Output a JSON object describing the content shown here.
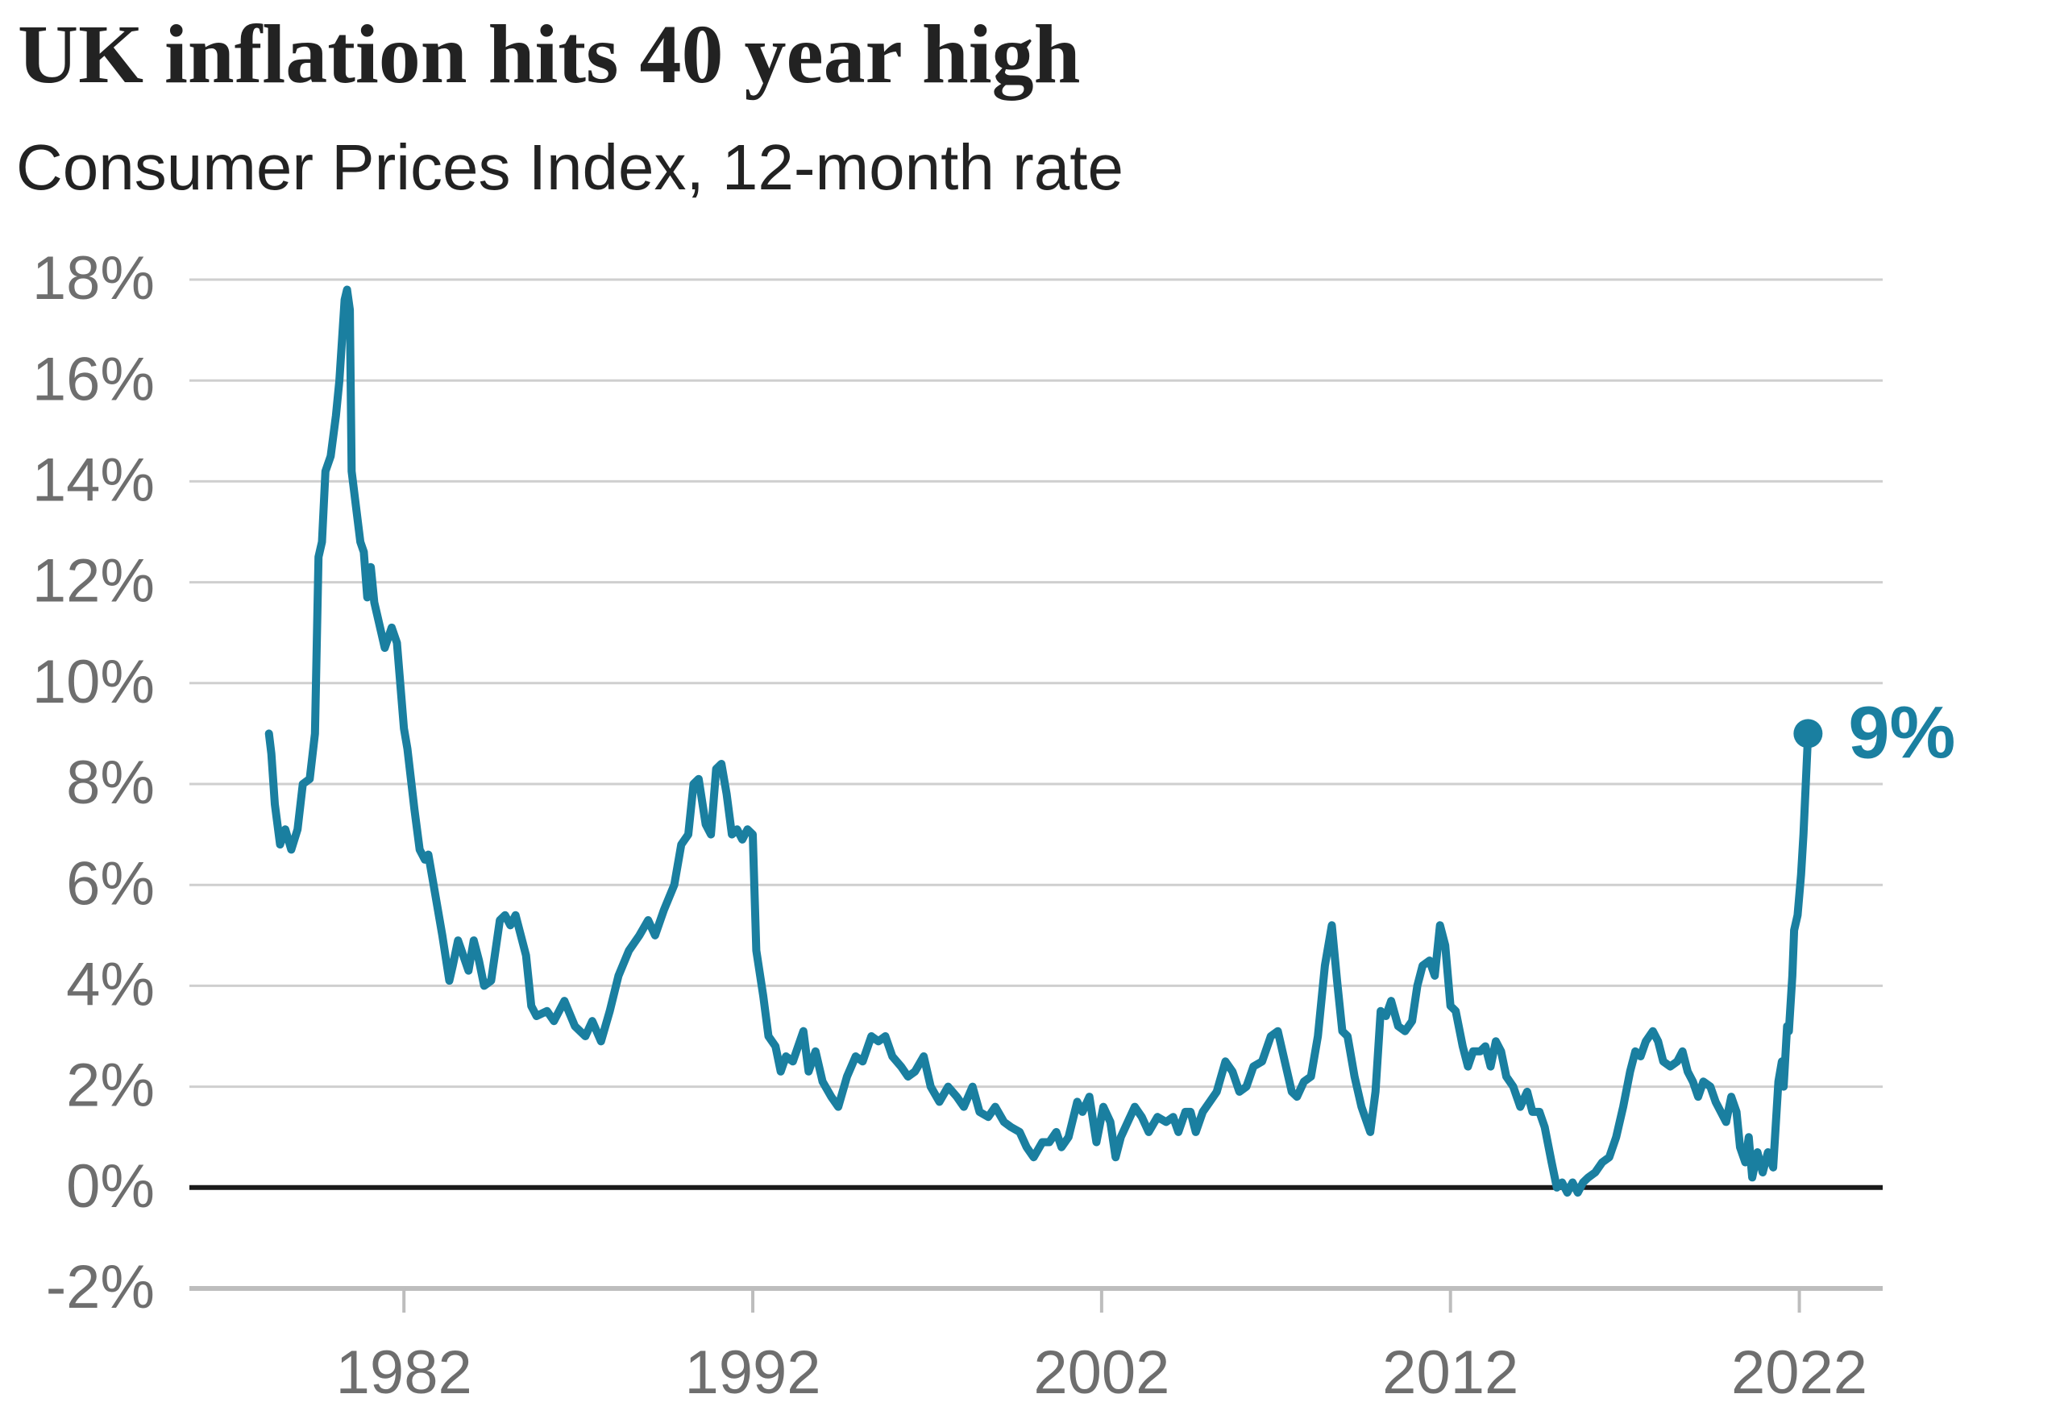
{
  "chart_data": {
    "type": "line",
    "title": "UK inflation hits 40 year high",
    "subtitle": "Consumer Prices Index, 12-month rate",
    "color": "#1a7fa0",
    "x": [
      1978.13,
      1978.2,
      1978.3,
      1978.45,
      1978.6,
      1978.77,
      1978.95,
      1979.1,
      1979.3,
      1979.45,
      1979.55,
      1979.65,
      1979.75,
      1979.9,
      1980.05,
      1980.15,
      1980.3,
      1980.37,
      1980.45,
      1980.5,
      1980.75,
      1980.85,
      1980.95,
      1981.05,
      1981.15,
      1981.35,
      1981.45,
      1981.65,
      1981.8,
      1982.0,
      1982.1,
      1982.3,
      1982.45,
      1982.6,
      1982.7,
      1982.85,
      1983.1,
      1983.3,
      1983.4,
      1983.55,
      1983.7,
      1983.85,
      1984.0,
      1984.15,
      1984.3,
      1984.5,
      1984.75,
      1984.9,
      1985.05,
      1985.2,
      1985.35,
      1985.5,
      1985.65,
      1985.8,
      1986.1,
      1986.3,
      1986.6,
      1986.9,
      1987.2,
      1987.4,
      1987.65,
      1987.9,
      1988.15,
      1988.45,
      1988.75,
      1989.0,
      1989.2,
      1989.45,
      1989.75,
      1989.95,
      1990.15,
      1990.3,
      1990.45,
      1990.65,
      1990.8,
      1990.95,
      1991.1,
      1991.25,
      1991.4,
      1991.55,
      1991.7,
      1991.85,
      1992.0,
      1992.1,
      1992.3,
      1992.45,
      1992.65,
      1992.8,
      1992.95,
      1993.15,
      1993.45,
      1993.6,
      1993.8,
      1994.0,
      1994.25,
      1994.45,
      1994.7,
      1994.95,
      1995.15,
      1995.4,
      1995.6,
      1995.8,
      1996.0,
      1996.25,
      1996.45,
      1996.65,
      1996.9,
      1997.1,
      1997.35,
      1997.6,
      1997.85,
      1998.05,
      1998.3,
      1998.5,
      1998.75,
      1998.95,
      1999.2,
      1999.4,
      1999.65,
      1999.85,
      2000.05,
      2000.3,
      2000.5,
      2000.7,
      2000.85,
      2001.05,
      2001.3,
      2001.45,
      2001.65,
      2001.85,
      2002.05,
      2002.25,
      2002.4,
      2002.55,
      2002.75,
      2002.95,
      2003.15,
      2003.35,
      2003.6,
      2003.85,
      2004.05,
      2004.2,
      2004.4,
      2004.55,
      2004.7,
      2004.9,
      2005.1,
      2005.3,
      2005.55,
      2005.75,
      2005.95,
      2006.15,
      2006.35,
      2006.6,
      2006.85,
      2007.05,
      2007.25,
      2007.45,
      2007.6,
      2007.8,
      2008.0,
      2008.2,
      2008.4,
      2008.6,
      2008.75,
      2008.9,
      2009.05,
      2009.25,
      2009.45,
      2009.7,
      2009.85,
      2010.0,
      2010.15,
      2010.3,
      2010.5,
      2010.7,
      2010.9,
      2011.05,
      2011.2,
      2011.4,
      2011.55,
      2011.7,
      2011.85,
      2012.0,
      2012.15,
      2012.35,
      2012.5,
      2012.65,
      2012.85,
      2013.0,
      2013.15,
      2013.3,
      2013.45,
      2013.6,
      2013.8,
      2014.0,
      2014.2,
      2014.35,
      2014.55,
      2014.7,
      2014.9,
      2015.05,
      2015.2,
      2015.35,
      2015.5,
      2015.65,
      2015.8,
      2015.95,
      2016.15,
      2016.35,
      2016.55,
      2016.75,
      2016.95,
      2017.15,
      2017.3,
      2017.45,
      2017.6,
      2017.8,
      2017.95,
      2018.1,
      2018.3,
      2018.5,
      2018.65,
      2018.8,
      2018.95,
      2019.1,
      2019.25,
      2019.45,
      2019.6,
      2019.75,
      2019.9,
      2020.05,
      2020.2,
      2020.3,
      2020.45,
      2020.55,
      2020.65,
      2020.8,
      2020.95,
      2021.1,
      2021.25,
      2021.4,
      2021.5,
      2021.55,
      2021.65,
      2021.7,
      2021.8,
      2021.85,
      2021.95,
      2022.05,
      2022.12,
      2022.25
    ],
    "values": [
      9.0,
      8.6,
      7.6,
      6.8,
      7.1,
      6.7,
      7.1,
      8.0,
      8.1,
      9.0,
      12.5,
      12.8,
      14.2,
      14.5,
      15.3,
      16.0,
      17.6,
      17.8,
      17.4,
      14.2,
      12.8,
      12.6,
      11.7,
      12.3,
      11.6,
      11.0,
      10.7,
      11.1,
      10.8,
      9.1,
      8.7,
      7.5,
      6.7,
      6.5,
      6.6,
      6.0,
      5.0,
      4.1,
      4.4,
      4.9,
      4.6,
      4.3,
      4.9,
      4.5,
      4.0,
      4.1,
      5.3,
      5.4,
      5.2,
      5.4,
      5.0,
      4.6,
      3.6,
      3.4,
      3.5,
      3.3,
      3.7,
      3.2,
      3.0,
      3.3,
      2.9,
      3.5,
      4.2,
      4.7,
      5.0,
      5.3,
      5.0,
      5.5,
      6.0,
      6.8,
      7.0,
      8.0,
      8.1,
      7.2,
      7.0,
      8.3,
      8.4,
      7.8,
      7.0,
      7.1,
      6.9,
      7.1,
      7.0,
      4.7,
      3.8,
      3.0,
      2.8,
      2.3,
      2.6,
      2.5,
      3.1,
      2.3,
      2.7,
      2.1,
      1.8,
      1.6,
      2.2,
      2.6,
      2.5,
      3.0,
      2.9,
      3.0,
      2.6,
      2.4,
      2.2,
      2.3,
      2.6,
      2.0,
      1.7,
      2.0,
      1.8,
      1.6,
      2.0,
      1.5,
      1.4,
      1.6,
      1.3,
      1.2,
      1.1,
      0.8,
      0.6,
      0.9,
      0.9,
      1.1,
      0.8,
      1.0,
      1.7,
      1.5,
      1.8,
      0.9,
      1.6,
      1.3,
      0.6,
      1.0,
      1.3,
      1.6,
      1.4,
      1.1,
      1.4,
      1.3,
      1.4,
      1.1,
      1.5,
      1.5,
      1.1,
      1.5,
      1.7,
      1.9,
      2.5,
      2.3,
      1.9,
      2.0,
      2.4,
      2.5,
      3.0,
      3.1,
      2.5,
      1.9,
      1.8,
      2.1,
      2.2,
      3.0,
      4.4,
      5.2,
      4.1,
      3.1,
      3.0,
      2.2,
      1.6,
      1.1,
      1.9,
      3.5,
      3.4,
      3.7,
      3.2,
      3.1,
      3.3,
      4.0,
      4.4,
      4.5,
      4.2,
      5.2,
      4.8,
      3.6,
      3.5,
      2.8,
      2.4,
      2.7,
      2.7,
      2.8,
      2.4,
      2.9,
      2.7,
      2.2,
      2.0,
      1.6,
      1.9,
      1.5,
      1.5,
      1.2,
      0.5,
      0.0,
      0.1,
      -0.1,
      0.1,
      -0.1,
      0.1,
      0.2,
      0.3,
      0.5,
      0.6,
      1.0,
      1.6,
      2.3,
      2.7,
      2.6,
      2.9,
      3.1,
      2.9,
      2.5,
      2.4,
      2.5,
      2.7,
      2.3,
      2.1,
      1.8,
      2.1,
      2.0,
      1.7,
      1.5,
      1.3,
      1.8,
      1.5,
      0.8,
      0.5,
      1.0,
      0.2,
      0.7,
      0.3,
      0.7,
      0.4,
      2.1,
      2.5,
      2.0,
      3.2,
      3.1,
      4.2,
      5.1,
      5.4,
      6.2,
      7.0,
      9.0
    ],
    "annotation": {
      "label": "9%",
      "x": 2022.25,
      "y": 9
    },
    "xlim": [
      1975.85,
      2024.39
    ],
    "xticks": [
      1982,
      1992,
      2002,
      2012,
      2022
    ],
    "ylim": [
      -2,
      18
    ],
    "yticks": [
      {
        "value": -2,
        "label": "-2%"
      },
      {
        "value": 0,
        "label": "0%"
      },
      {
        "value": 2,
        "label": "2%"
      },
      {
        "value": 4,
        "label": "4%"
      },
      {
        "value": 6,
        "label": "6%"
      },
      {
        "value": 8,
        "label": "8%"
      },
      {
        "value": 10,
        "label": "10%"
      },
      {
        "value": 12,
        "label": "12%"
      },
      {
        "value": 14,
        "label": "14%"
      },
      {
        "value": 16,
        "label": "16%"
      },
      {
        "value": 18,
        "label": "18%"
      }
    ],
    "grid": true
  }
}
